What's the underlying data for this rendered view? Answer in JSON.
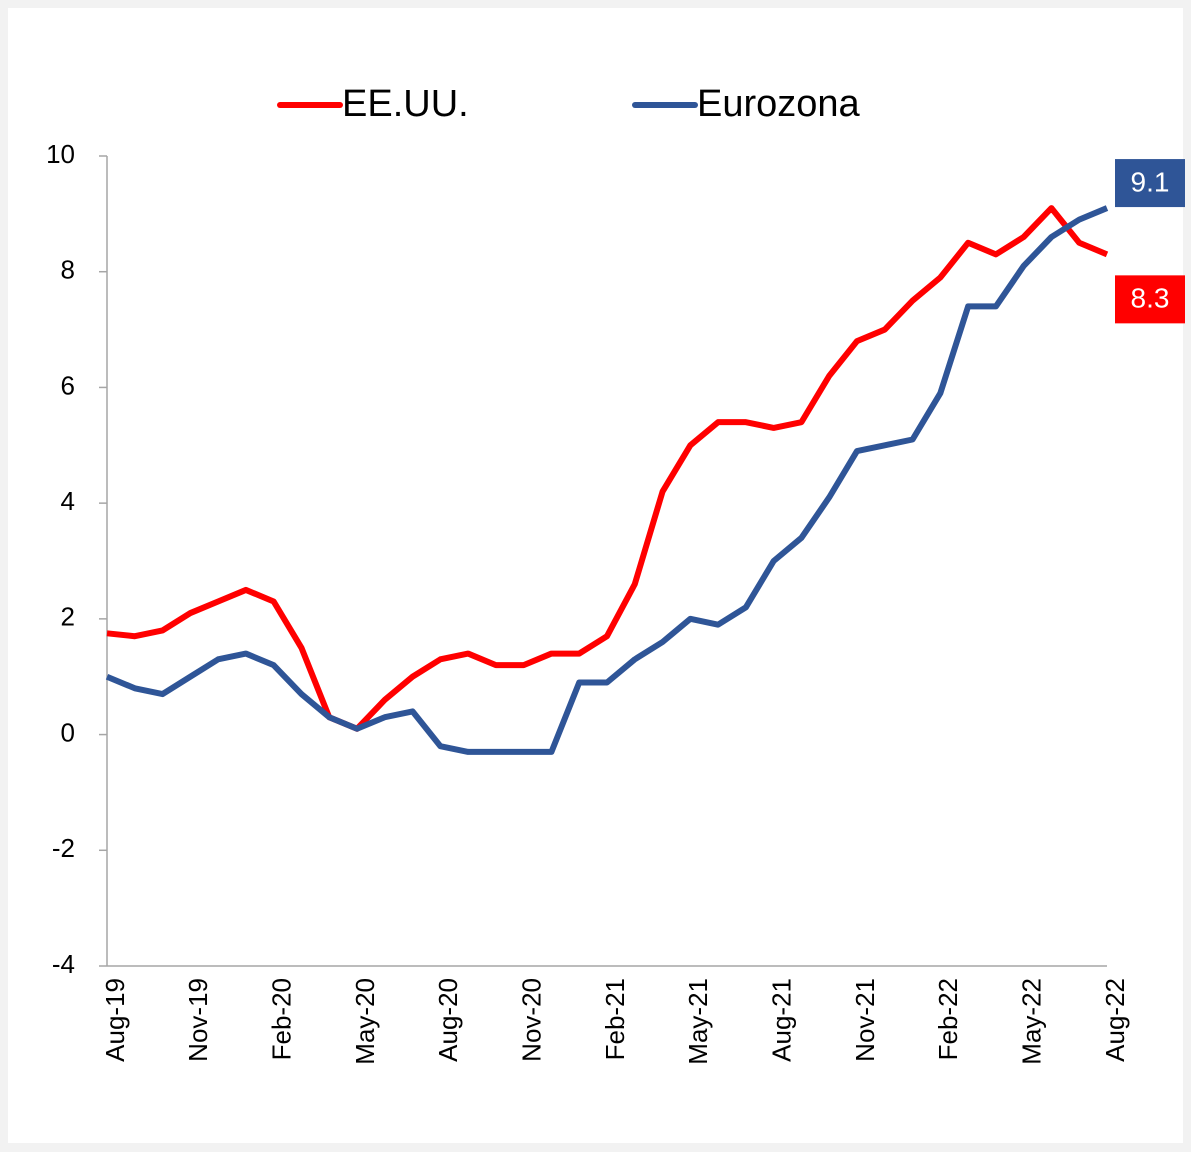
{
  "chart_data": {
    "type": "line",
    "categories": [
      "Aug-19",
      null,
      null,
      "Nov-19",
      null,
      null,
      "Feb-20",
      null,
      null,
      "May-20",
      null,
      null,
      "Aug-20",
      null,
      null,
      "Nov-20",
      null,
      null,
      "Feb-21",
      null,
      null,
      "May-21",
      null,
      null,
      "Aug-21",
      null,
      null,
      "Nov-21",
      null,
      null,
      "Feb-22",
      null,
      null,
      "May-22",
      null,
      null,
      "Aug-22"
    ],
    "series": [
      {
        "name": "EE.UU.",
        "color": "#ff0000",
        "values": [
          1.75,
          1.7,
          1.8,
          2.1,
          2.3,
          2.5,
          2.3,
          1.5,
          0.3,
          0.1,
          0.6,
          1.0,
          1.3,
          1.4,
          1.2,
          1.2,
          1.4,
          1.4,
          1.7,
          2.6,
          4.2,
          5.0,
          5.4,
          5.4,
          5.3,
          5.4,
          6.2,
          6.8,
          7.0,
          7.5,
          7.9,
          8.5,
          8.3,
          8.6,
          9.1,
          8.5,
          8.3
        ]
      },
      {
        "name": "Eurozona",
        "color": "#2f5597",
        "values": [
          1.0,
          0.8,
          0.7,
          1.0,
          1.3,
          1.4,
          1.2,
          0.7,
          0.3,
          0.1,
          0.3,
          0.4,
          -0.2,
          -0.3,
          -0.3,
          -0.3,
          -0.3,
          0.9,
          0.9,
          1.3,
          1.6,
          2.0,
          1.9,
          2.2,
          3.0,
          3.4,
          4.1,
          4.9,
          5.0,
          5.1,
          5.9,
          7.4,
          7.4,
          8.1,
          8.6,
          8.9,
          9.1
        ]
      }
    ],
    "ylim": [
      -4,
      10
    ],
    "yticks": [
      -4,
      -2,
      0,
      2,
      4,
      6,
      8,
      10
    ],
    "grid": false,
    "legend": "top"
  }
}
